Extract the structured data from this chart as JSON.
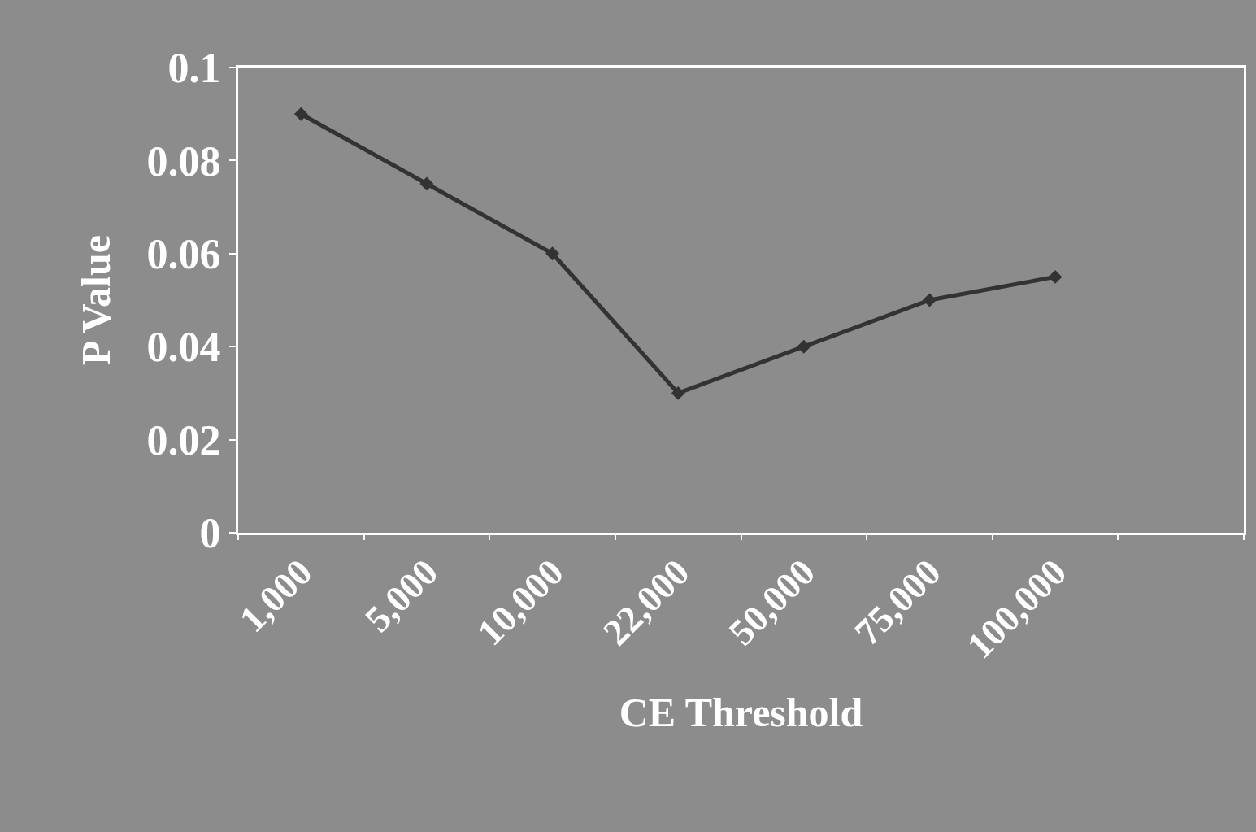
{
  "chart_data": {
    "type": "line",
    "xlabel": "CE Threshold",
    "ylabel": "P Value",
    "categories": [
      "1,000",
      "5,000",
      "10,000",
      "22,000",
      "50,000",
      "75,000",
      "100,000",
      null
    ],
    "series": [
      {
        "color": "#333333",
        "values": [
          0.09,
          0.075,
          0.06,
          0.03,
          0.04,
          0.05,
          0.055,
          null
        ]
      }
    ],
    "ylim": [
      0,
      0.1
    ],
    "yticks": [
      0,
      0.02,
      0.04,
      0.06,
      0.08,
      0.1
    ],
    "marker": "diamond",
    "line_style": "solid",
    "grid": false
  }
}
